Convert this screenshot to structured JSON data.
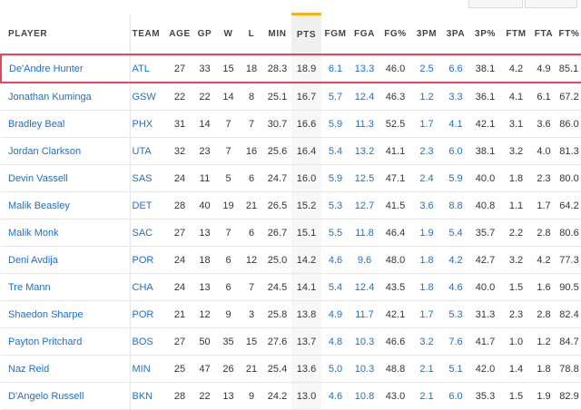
{
  "columns": [
    "PLAYER",
    "TEAM",
    "AGE",
    "GP",
    "W",
    "L",
    "MIN",
    "PTS",
    "FGM",
    "FGA",
    "FG%",
    "3PM",
    "3PA",
    "3P%",
    "FTM",
    "FTA",
    "FT%"
  ],
  "link_columns": [
    "TEAM",
    "FGM",
    "FGA",
    "3PM",
    "3PA"
  ],
  "sorted_column": "PTS",
  "rows": [
    [
      "De'Andre Hunter",
      "ATL",
      "27",
      "33",
      "15",
      "18",
      "28.3",
      "18.9",
      "6.1",
      "13.3",
      "46.0",
      "2.5",
      "6.6",
      "38.1",
      "4.2",
      "4.9",
      "85.1"
    ],
    [
      "Jonathan Kuminga",
      "GSW",
      "22",
      "22",
      "14",
      "8",
      "25.1",
      "16.7",
      "5.7",
      "12.4",
      "46.3",
      "1.2",
      "3.3",
      "36.1",
      "4.1",
      "6.1",
      "67.2"
    ],
    [
      "Bradley Beal",
      "PHX",
      "31",
      "14",
      "7",
      "7",
      "30.7",
      "16.6",
      "5.9",
      "11.3",
      "52.5",
      "1.7",
      "4.1",
      "42.1",
      "3.1",
      "3.6",
      "86.0"
    ],
    [
      "Jordan Clarkson",
      "UTA",
      "32",
      "23",
      "7",
      "16",
      "25.6",
      "16.4",
      "5.4",
      "13.2",
      "41.1",
      "2.3",
      "6.0",
      "38.1",
      "3.2",
      "4.0",
      "81.3"
    ],
    [
      "Devin Vassell",
      "SAS",
      "24",
      "11",
      "5",
      "6",
      "24.7",
      "16.0",
      "5.9",
      "12.5",
      "47.1",
      "2.4",
      "5.9",
      "40.0",
      "1.8",
      "2.3",
      "80.0"
    ],
    [
      "Malik Beasley",
      "DET",
      "28",
      "40",
      "19",
      "21",
      "26.5",
      "15.2",
      "5.3",
      "12.7",
      "41.5",
      "3.6",
      "8.8",
      "40.8",
      "1.1",
      "1.7",
      "64.2"
    ],
    [
      "Malik Monk",
      "SAC",
      "27",
      "13",
      "7",
      "6",
      "26.7",
      "15.1",
      "5.5",
      "11.8",
      "46.4",
      "1.9",
      "5.4",
      "35.7",
      "2.2",
      "2.8",
      "80.6"
    ],
    [
      "Deni Avdija",
      "POR",
      "24",
      "18",
      "6",
      "12",
      "25.0",
      "14.2",
      "4.6",
      "9.6",
      "48.0",
      "1.8",
      "4.2",
      "42.7",
      "3.2",
      "4.2",
      "77.3"
    ],
    [
      "Tre Mann",
      "CHA",
      "24",
      "13",
      "6",
      "7",
      "24.5",
      "14.1",
      "5.4",
      "12.4",
      "43.5",
      "1.8",
      "4.6",
      "40.0",
      "1.5",
      "1.6",
      "90.5"
    ],
    [
      "Shaedon Sharpe",
      "POR",
      "21",
      "12",
      "9",
      "3",
      "25.8",
      "13.8",
      "4.9",
      "11.7",
      "42.1",
      "1.7",
      "5.3",
      "31.3",
      "2.3",
      "2.8",
      "82.4"
    ],
    [
      "Payton Pritchard",
      "BOS",
      "27",
      "50",
      "35",
      "15",
      "27.6",
      "13.7",
      "4.8",
      "10.3",
      "46.6",
      "3.2",
      "7.6",
      "41.7",
      "1.0",
      "1.2",
      "84.7"
    ],
    [
      "Naz Reid",
      "MIN",
      "25",
      "47",
      "26",
      "21",
      "25.4",
      "13.6",
      "5.0",
      "10.3",
      "48.8",
      "2.1",
      "5.1",
      "42.0",
      "1.4",
      "1.8",
      "78.8"
    ],
    [
      "D'Angelo Russell",
      "BKN",
      "28",
      "22",
      "13",
      "9",
      "24.2",
      "13.0",
      "4.6",
      "10.8",
      "43.0",
      "2.1",
      "6.0",
      "35.3",
      "1.5",
      "1.9",
      "82.9"
    ]
  ],
  "highlight_row": 0,
  "colors": {
    "link": "#1f6fc5",
    "highlight": "#e04a5a",
    "sort_accent": "#f5b316"
  }
}
